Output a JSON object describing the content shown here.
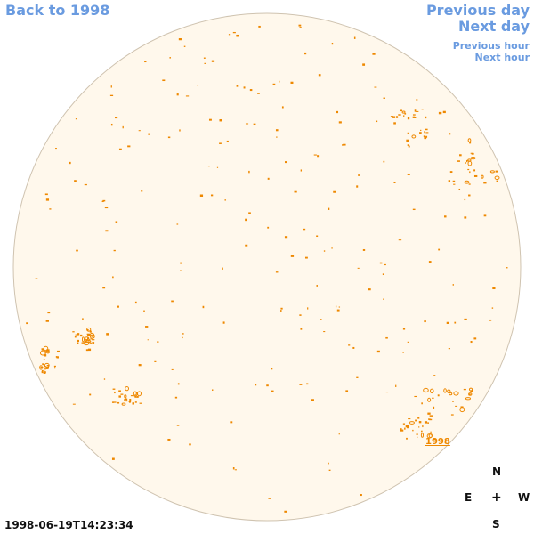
{
  "nav": {
    "back_label": "Back to 1998",
    "previous_day_label": "Previous day",
    "next_day_label": "Next day",
    "previous_hour_label": "Previous hour",
    "next_hour_label": "Next hour"
  },
  "sun_image": {
    "year_tag": "1998",
    "timestamp": "1998-06-19T14:23:34"
  },
  "compass": {
    "north": "N",
    "east": "E",
    "center": "+",
    "west": "W",
    "south": "S"
  },
  "colors": {
    "link": "#6a9be0",
    "disk_fill": "#fff8ec",
    "disk_edge": "#cfc3b0",
    "feature": "#ee8800",
    "text": "#111111"
  }
}
